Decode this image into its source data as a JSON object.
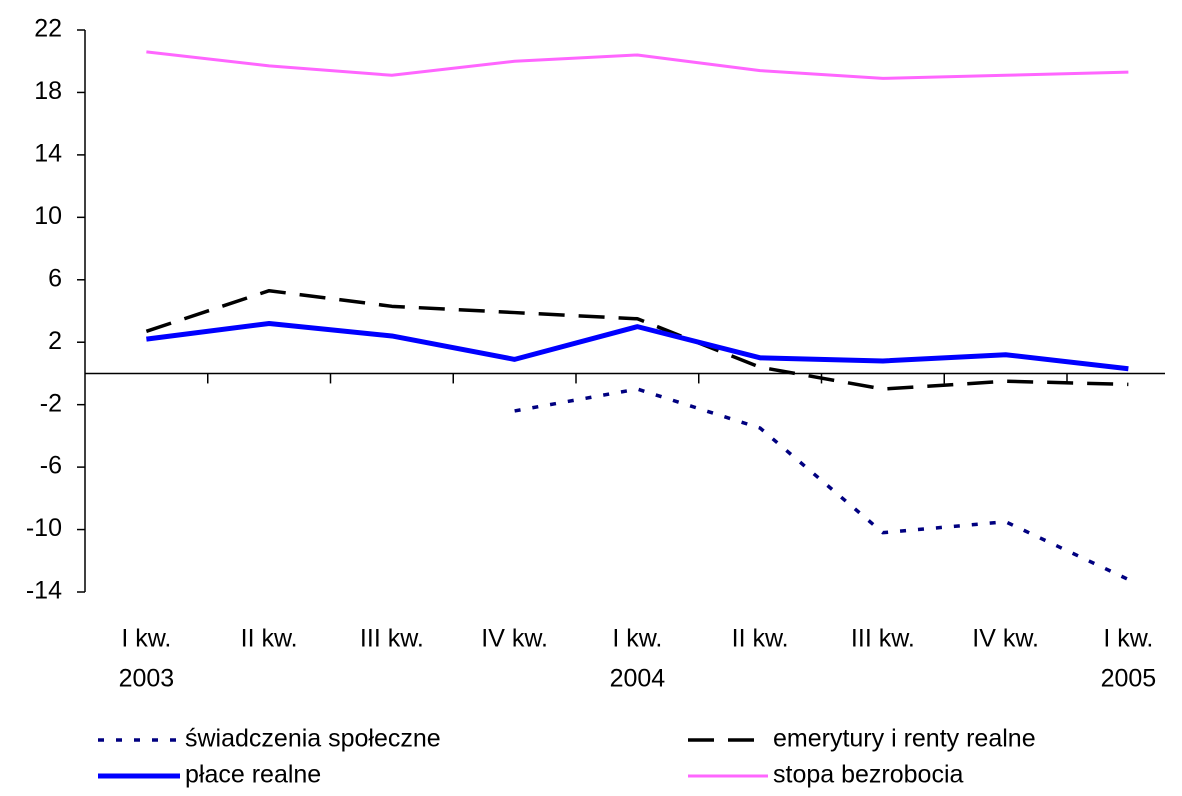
{
  "chart_data": {
    "type": "line",
    "categories": [
      [
        "I kw.",
        "2003"
      ],
      [
        "II kw."
      ],
      [
        "III kw."
      ],
      [
        "IV kw."
      ],
      [
        "I kw.",
        "2004"
      ],
      [
        "II kw."
      ],
      [
        "III kw."
      ],
      [
        "IV kw."
      ],
      [
        "I kw.",
        "2005"
      ]
    ],
    "series": [
      {
        "name": "świadczenia społeczne",
        "color": "#000080",
        "values": [
          null,
          null,
          null,
          -2.4,
          -1.0,
          -3.5,
          -10.2,
          -9.5,
          -13.2
        ]
      },
      {
        "name": "emerytury i renty realne",
        "color": "#000000",
        "values": [
          2.7,
          5.3,
          4.3,
          3.9,
          3.5,
          0.4,
          -1.0,
          -0.5,
          -0.7
        ]
      },
      {
        "name": "płace realne",
        "color": "#0000ff",
        "values": [
          2.2,
          3.2,
          2.4,
          0.9,
          3.0,
          1.0,
          0.8,
          1.2,
          0.3
        ]
      },
      {
        "name": "stopa bezrobocia",
        "color": "#ff66ff",
        "values": [
          20.6,
          19.7,
          19.1,
          20.0,
          20.4,
          19.4,
          18.9,
          19.1,
          19.3
        ]
      }
    ],
    "ylim": [
      -14,
      22
    ],
    "yticks": [
      -14,
      -10,
      -6,
      -2,
      2,
      6,
      10,
      14,
      18,
      22
    ]
  }
}
